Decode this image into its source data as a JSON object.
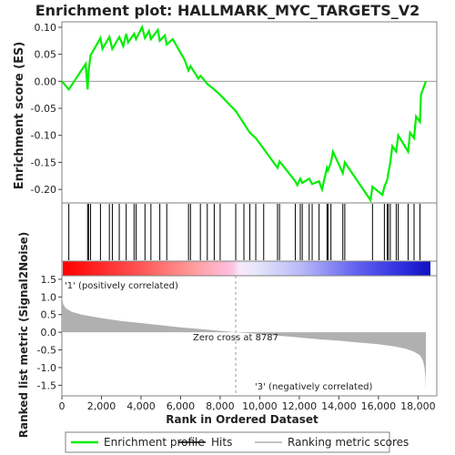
{
  "chart_data": {
    "type": "line",
    "title": "Enrichment plot: HALLMARK_MYC_TARGETS_V2",
    "top_panel": {
      "ylabel": "Enrichment score (ES)",
      "ylim": [
        -0.225,
        0.11
      ],
      "yticks": [
        0.1,
        0.05,
        0.0,
        -0.05,
        -0.1,
        -0.15,
        -0.2
      ],
      "ytick_labels": [
        "0.10",
        "0.05",
        "0.00",
        "-0.05",
        "-0.10",
        "-0.15",
        "-0.20"
      ],
      "series": [
        {
          "name": "Enrichment profile",
          "color": "#00ee00",
          "x": [
            0,
            350,
            1200,
            1300,
            1350,
            1450,
            1950,
            2050,
            2400,
            2550,
            2900,
            3100,
            3250,
            3350,
            3650,
            3750,
            4050,
            4200,
            4400,
            4500,
            4850,
            4950,
            5200,
            5300,
            5600,
            6200,
            6400,
            6500,
            6900,
            7000,
            7250,
            7350,
            7700,
            8000,
            8787,
            9200,
            9500,
            9800,
            10200,
            10500,
            10900,
            11000,
            11800,
            11900,
            12050,
            12150,
            12500,
            12650,
            13000,
            13150,
            13400,
            13450,
            13600,
            13700,
            14200,
            14300,
            15600,
            15700,
            16200,
            16300,
            16450,
            16500,
            16600,
            16700,
            16900,
            17000,
            17500,
            17600,
            17800,
            17900,
            18100,
            18150,
            18400
          ],
          "y": [
            0.0,
            -0.015,
            0.032,
            -0.015,
            0.02,
            0.048,
            0.08,
            0.06,
            0.082,
            0.06,
            0.082,
            0.065,
            0.088,
            0.072,
            0.088,
            0.078,
            0.1,
            0.08,
            0.093,
            0.078,
            0.095,
            0.075,
            0.085,
            0.068,
            0.078,
            0.04,
            0.02,
            0.028,
            0.005,
            0.01,
            0.0,
            -0.005,
            -0.015,
            -0.025,
            -0.055,
            -0.078,
            -0.095,
            -0.105,
            -0.125,
            -0.14,
            -0.16,
            -0.148,
            -0.185,
            -0.192,
            -0.18,
            -0.188,
            -0.18,
            -0.19,
            -0.185,
            -0.2,
            -0.16,
            -0.165,
            -0.15,
            -0.13,
            -0.17,
            -0.15,
            -0.22,
            -0.195,
            -0.21,
            -0.195,
            -0.182,
            -0.17,
            -0.15,
            -0.12,
            -0.13,
            -0.1,
            -0.13,
            -0.095,
            -0.105,
            -0.065,
            -0.075,
            -0.025,
            0.0
          ]
        }
      ]
    },
    "hits_panel": {
      "hit_positions": [
        350,
        1300,
        1350,
        1450,
        1950,
        2400,
        2550,
        2900,
        3250,
        3650,
        3750,
        4200,
        4500,
        4950,
        5300,
        6400,
        6500,
        7000,
        7350,
        7700,
        8000,
        8787,
        9200,
        9500,
        9800,
        10200,
        10900,
        11000,
        11800,
        12050,
        12150,
        12500,
        12650,
        13000,
        13400,
        13450,
        13600,
        14200,
        14300,
        15700,
        16300,
        16450,
        16500,
        16600,
        16900,
        17000,
        17500,
        17800,
        18100
      ]
    },
    "bottom_panel": {
      "ylabel": "Ranked list metric (Signal2Noise)",
      "xlabel": "Rank in Ordered Dataset",
      "xlim": [
        0,
        18950
      ],
      "ylim": [
        -1.8,
        1.6
      ],
      "yticks": [
        1.5,
        1.0,
        0.5,
        0.0,
        -0.5,
        -1.0,
        -1.5
      ],
      "ytick_labels": [
        "1.5",
        "1.0",
        "0.5",
        "0.0",
        "-0.5",
        "-1.0",
        "-1.5"
      ],
      "xticks": [
        0,
        2000,
        4000,
        6000,
        8000,
        10000,
        12000,
        14000,
        16000,
        18000
      ],
      "xtick_labels": [
        "0",
        "2,000",
        "4,000",
        "6,000",
        "8,000",
        "10,000",
        "12,000",
        "14,000",
        "16,000",
        "18,000"
      ],
      "metric_profile": {
        "x": [
          0,
          80,
          200,
          500,
          1000,
          2000,
          3000,
          4000,
          5000,
          6000,
          7000,
          8000,
          8787,
          10000,
          11000,
          12000,
          13000,
          14000,
          15000,
          16000,
          16800,
          17400,
          17800,
          18100,
          18250,
          18330,
          18380,
          18400
        ],
        "y": [
          1.0,
          0.78,
          0.68,
          0.58,
          0.5,
          0.4,
          0.32,
          0.26,
          0.2,
          0.14,
          0.09,
          0.04,
          0.0,
          -0.05,
          -0.1,
          -0.15,
          -0.2,
          -0.24,
          -0.29,
          -0.34,
          -0.4,
          -0.47,
          -0.55,
          -0.65,
          -0.8,
          -1.0,
          -1.3,
          -1.7
        ]
      },
      "zero_cross_label": "Zero cross at 8787",
      "zero_cross_x": 8787,
      "positive_label": "'1' (positively correlated)",
      "negative_label": "'3' (negatively correlated)"
    },
    "legend": {
      "placement": "bottom",
      "items": [
        {
          "label": "Enrichment profile",
          "color": "#00ee00"
        },
        {
          "label": "Hits",
          "color": "#000000"
        },
        {
          "label": "Ranking metric scores",
          "color": "#b0b0b0"
        }
      ]
    },
    "colors": {
      "profile": "#00ee00",
      "metric_fill": "#b0b0b0",
      "positive": "#ff2020",
      "negative": "#2020ff",
      "zero_line": "#999999"
    }
  }
}
